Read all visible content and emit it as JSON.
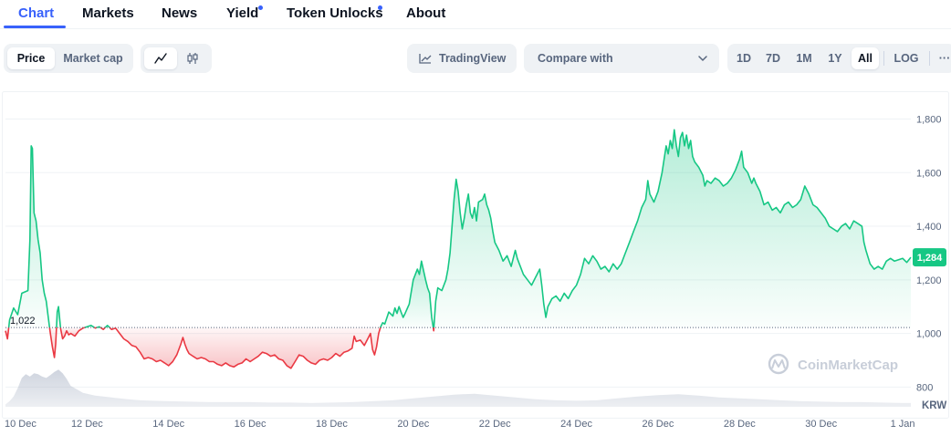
{
  "tabs": [
    {
      "label": "Chart",
      "active": true,
      "dot": false
    },
    {
      "label": "Markets",
      "active": false,
      "dot": false
    },
    {
      "label": "News",
      "active": false,
      "dot": false
    },
    {
      "label": "Yield",
      "active": false,
      "dot": true
    },
    {
      "label": "Token Unlocks",
      "active": false,
      "dot": true
    },
    {
      "label": "About",
      "active": false,
      "dot": false
    }
  ],
  "toolbar": {
    "price_label": "Price",
    "market_cap_label": "Market cap",
    "line_chart_icon": "line-chart-icon",
    "candlestick_icon": "candlestick-icon",
    "tradingview_label": "TradingView",
    "compare_label": "Compare with",
    "ranges": [
      "1D",
      "7D",
      "1M",
      "1Y",
      "All"
    ],
    "active_range": "All",
    "log_label": "LOG",
    "more_label": "···"
  },
  "colors": {
    "accent": "#3861fb",
    "up": "#16c784",
    "down": "#ea3943",
    "text": "#0d1421",
    "muted": "#58667e"
  },
  "chart_data": {
    "type": "area",
    "currency": "KRW",
    "baseline": 1022,
    "baseline_label": "1,022",
    "current_value": 1284,
    "current_label": "1,284",
    "y_ticks": [
      800,
      1000,
      1200,
      1400,
      1600,
      1800
    ],
    "y_tick_labels": [
      "800",
      "1,000",
      "1,200",
      "1,400",
      "1,600",
      "1,800"
    ],
    "ylim": [
      740,
      1880
    ],
    "x_tick_labels": [
      "10 Dec",
      "12 Dec",
      "14 Dec",
      "16 Dec",
      "18 Dec",
      "20 Dec",
      "22 Dec",
      "24 Dec",
      "26 Dec",
      "28 Dec",
      "30 Dec",
      "1 Jan"
    ],
    "watermark": "CoinMarketCap",
    "price": [
      [
        0.0,
        1010
      ],
      [
        0.05,
        980
      ],
      [
        0.1,
        1050
      ],
      [
        0.2,
        1095
      ],
      [
        0.3,
        1070
      ],
      [
        0.4,
        1150
      ],
      [
        0.55,
        1160
      ],
      [
        0.6,
        1350
      ],
      [
        0.63,
        1700
      ],
      [
        0.66,
        1690
      ],
      [
        0.7,
        1450
      ],
      [
        0.75,
        1420
      ],
      [
        0.8,
        1350
      ],
      [
        0.85,
        1300
      ],
      [
        0.9,
        1200
      ],
      [
        0.95,
        1150
      ],
      [
        1.0,
        1120
      ],
      [
        1.05,
        1060
      ],
      [
        1.1,
        1000
      ],
      [
        1.15,
        950
      ],
      [
        1.2,
        910
      ],
      [
        1.23,
        960
      ],
      [
        1.27,
        1080
      ],
      [
        1.3,
        1100
      ],
      [
        1.35,
        1020
      ],
      [
        1.4,
        980
      ],
      [
        1.45,
        990
      ],
      [
        1.5,
        1010
      ],
      [
        1.55,
        995
      ],
      [
        1.6,
        1000
      ],
      [
        1.7,
        990
      ],
      [
        1.8,
        1010
      ],
      [
        1.9,
        1020
      ],
      [
        2.0,
        1025
      ],
      [
        2.1,
        1030
      ],
      [
        2.2,
        1020
      ],
      [
        2.3,
        1025
      ],
      [
        2.4,
        1015
      ],
      [
        2.5,
        1030
      ],
      [
        2.6,
        1015
      ],
      [
        2.7,
        1020
      ],
      [
        2.8,
        1000
      ],
      [
        2.9,
        980
      ],
      [
        3.0,
        970
      ],
      [
        3.1,
        955
      ],
      [
        3.2,
        950
      ],
      [
        3.3,
        930
      ],
      [
        3.4,
        905
      ],
      [
        3.5,
        910
      ],
      [
        3.6,
        905
      ],
      [
        3.7,
        895
      ],
      [
        3.8,
        900
      ],
      [
        3.9,
        890
      ],
      [
        4.0,
        880
      ],
      [
        4.1,
        895
      ],
      [
        4.2,
        920
      ],
      [
        4.3,
        960
      ],
      [
        4.35,
        985
      ],
      [
        4.4,
        960
      ],
      [
        4.45,
        940
      ],
      [
        4.5,
        925
      ],
      [
        4.6,
        915
      ],
      [
        4.7,
        905
      ],
      [
        4.8,
        910
      ],
      [
        4.9,
        905
      ],
      [
        5.0,
        895
      ],
      [
        5.1,
        895
      ],
      [
        5.2,
        885
      ],
      [
        5.3,
        880
      ],
      [
        5.4,
        890
      ],
      [
        5.5,
        880
      ],
      [
        5.6,
        875
      ],
      [
        5.7,
        885
      ],
      [
        5.8,
        890
      ],
      [
        5.9,
        905
      ],
      [
        6.0,
        895
      ],
      [
        6.1,
        905
      ],
      [
        6.2,
        915
      ],
      [
        6.3,
        930
      ],
      [
        6.4,
        925
      ],
      [
        6.5,
        915
      ],
      [
        6.6,
        920
      ],
      [
        6.7,
        905
      ],
      [
        6.8,
        900
      ],
      [
        6.9,
        880
      ],
      [
        7.0,
        870
      ],
      [
        7.1,
        895
      ],
      [
        7.2,
        920
      ],
      [
        7.3,
        915
      ],
      [
        7.4,
        900
      ],
      [
        7.5,
        890
      ],
      [
        7.6,
        885
      ],
      [
        7.7,
        900
      ],
      [
        7.8,
        905
      ],
      [
        7.9,
        900
      ],
      [
        8.0,
        910
      ],
      [
        8.1,
        925
      ],
      [
        8.2,
        915
      ],
      [
        8.3,
        930
      ],
      [
        8.4,
        935
      ],
      [
        8.5,
        945
      ],
      [
        8.55,
        990
      ],
      [
        8.6,
        970
      ],
      [
        8.7,
        975
      ],
      [
        8.8,
        955
      ],
      [
        8.9,
        985
      ],
      [
        8.95,
        1000
      ],
      [
        9.0,
        940
      ],
      [
        9.05,
        920
      ],
      [
        9.1,
        950
      ],
      [
        9.15,
        1000
      ],
      [
        9.2,
        1025
      ],
      [
        9.25,
        1040
      ],
      [
        9.3,
        1035
      ],
      [
        9.4,
        1080
      ],
      [
        9.5,
        1065
      ],
      [
        9.55,
        1095
      ],
      [
        9.6,
        1075
      ],
      [
        9.65,
        1100
      ],
      [
        9.7,
        1080
      ],
      [
        9.75,
        1060
      ],
      [
        9.8,
        1075
      ],
      [
        9.9,
        1110
      ],
      [
        10.0,
        1200
      ],
      [
        10.1,
        1240
      ],
      [
        10.15,
        1220
      ],
      [
        10.2,
        1270
      ],
      [
        10.3,
        1200
      ],
      [
        10.35,
        1170
      ],
      [
        10.4,
        1150
      ],
      [
        10.45,
        1060
      ],
      [
        10.5,
        1010
      ],
      [
        10.55,
        1120
      ],
      [
        10.6,
        1170
      ],
      [
        10.7,
        1160
      ],
      [
        10.8,
        1200
      ],
      [
        10.85,
        1240
      ],
      [
        10.9,
        1300
      ],
      [
        10.95,
        1400
      ],
      [
        11.0,
        1500
      ],
      [
        11.05,
        1575
      ],
      [
        11.1,
        1530
      ],
      [
        11.15,
        1450
      ],
      [
        11.2,
        1390
      ],
      [
        11.25,
        1430
      ],
      [
        11.3,
        1480
      ],
      [
        11.35,
        1520
      ],
      [
        11.4,
        1450
      ],
      [
        11.45,
        1430
      ],
      [
        11.5,
        1470
      ],
      [
        11.55,
        1420
      ],
      [
        11.6,
        1490
      ],
      [
        11.7,
        1500
      ],
      [
        11.75,
        1520
      ],
      [
        11.8,
        1480
      ],
      [
        11.85,
        1460
      ],
      [
        11.9,
        1430
      ],
      [
        11.95,
        1380
      ],
      [
        12.0,
        1340
      ],
      [
        12.1,
        1310
      ],
      [
        12.2,
        1270
      ],
      [
        12.3,
        1290
      ],
      [
        12.4,
        1250
      ],
      [
        12.5,
        1310
      ],
      [
        12.55,
        1280
      ],
      [
        12.6,
        1260
      ],
      [
        12.7,
        1220
      ],
      [
        12.8,
        1200
      ],
      [
        12.9,
        1180
      ],
      [
        13.0,
        1210
      ],
      [
        13.1,
        1240
      ],
      [
        13.15,
        1180
      ],
      [
        13.2,
        1110
      ],
      [
        13.25,
        1060
      ],
      [
        13.3,
        1100
      ],
      [
        13.4,
        1130
      ],
      [
        13.5,
        1140
      ],
      [
        13.6,
        1120
      ],
      [
        13.7,
        1150
      ],
      [
        13.8,
        1130
      ],
      [
        13.9,
        1160
      ],
      [
        14.0,
        1180
      ],
      [
        14.1,
        1220
      ],
      [
        14.2,
        1280
      ],
      [
        14.3,
        1260
      ],
      [
        14.4,
        1290
      ],
      [
        14.5,
        1270
      ],
      [
        14.6,
        1240
      ],
      [
        14.7,
        1250
      ],
      [
        14.8,
        1230
      ],
      [
        14.9,
        1260
      ],
      [
        15.0,
        1240
      ],
      [
        15.1,
        1260
      ],
      [
        15.2,
        1300
      ],
      [
        15.3,
        1340
      ],
      [
        15.4,
        1380
      ],
      [
        15.5,
        1420
      ],
      [
        15.6,
        1470
      ],
      [
        15.7,
        1500
      ],
      [
        15.75,
        1570
      ],
      [
        15.8,
        1520
      ],
      [
        15.9,
        1490
      ],
      [
        16.0,
        1530
      ],
      [
        16.1,
        1600
      ],
      [
        16.2,
        1700
      ],
      [
        16.25,
        1670
      ],
      [
        16.3,
        1720
      ],
      [
        16.35,
        1690
      ],
      [
        16.4,
        1760
      ],
      [
        16.45,
        1700
      ],
      [
        16.5,
        1660
      ],
      [
        16.55,
        1730
      ],
      [
        16.6,
        1750
      ],
      [
        16.65,
        1700
      ],
      [
        16.7,
        1740
      ],
      [
        16.75,
        1690
      ],
      [
        16.8,
        1720
      ],
      [
        16.85,
        1660
      ],
      [
        16.9,
        1640
      ],
      [
        17.0,
        1620
      ],
      [
        17.1,
        1590
      ],
      [
        17.15,
        1550
      ],
      [
        17.2,
        1570
      ],
      [
        17.3,
        1560
      ],
      [
        17.4,
        1580
      ],
      [
        17.5,
        1570
      ],
      [
        17.6,
        1550
      ],
      [
        17.7,
        1560
      ],
      [
        17.8,
        1580
      ],
      [
        17.9,
        1610
      ],
      [
        18.0,
        1650
      ],
      [
        18.05,
        1680
      ],
      [
        18.1,
        1620
      ],
      [
        18.2,
        1600
      ],
      [
        18.3,
        1560
      ],
      [
        18.35,
        1580
      ],
      [
        18.4,
        1560
      ],
      [
        18.5,
        1530
      ],
      [
        18.6,
        1480
      ],
      [
        18.7,
        1490
      ],
      [
        18.8,
        1460
      ],
      [
        18.9,
        1470
      ],
      [
        19.0,
        1450
      ],
      [
        19.1,
        1480
      ],
      [
        19.2,
        1490
      ],
      [
        19.3,
        1470
      ],
      [
        19.4,
        1480
      ],
      [
        19.5,
        1500
      ],
      [
        19.6,
        1550
      ],
      [
        19.7,
        1520
      ],
      [
        19.8,
        1480
      ],
      [
        19.9,
        1470
      ],
      [
        20.0,
        1450
      ],
      [
        20.1,
        1430
      ],
      [
        20.2,
        1400
      ],
      [
        20.3,
        1390
      ],
      [
        20.4,
        1380
      ],
      [
        20.5,
        1400
      ],
      [
        20.6,
        1410
      ],
      [
        20.7,
        1390
      ],
      [
        20.8,
        1420
      ],
      [
        20.9,
        1410
      ],
      [
        21.0,
        1400
      ],
      [
        21.05,
        1340
      ],
      [
        21.1,
        1310
      ],
      [
        21.2,
        1260
      ],
      [
        21.3,
        1240
      ],
      [
        21.4,
        1250
      ],
      [
        21.5,
        1240
      ],
      [
        21.6,
        1270
      ],
      [
        21.7,
        1280
      ],
      [
        21.8,
        1270
      ],
      [
        21.9,
        1275
      ],
      [
        22.0,
        1280
      ],
      [
        22.1,
        1265
      ],
      [
        22.2,
        1284
      ]
    ],
    "volume": [
      [
        0.0,
        0.05
      ],
      [
        0.1,
        0.12
      ],
      [
        0.2,
        0.22
      ],
      [
        0.3,
        0.4
      ],
      [
        0.4,
        0.62
      ],
      [
        0.5,
        0.7
      ],
      [
        0.6,
        0.65
      ],
      [
        0.7,
        0.72
      ],
      [
        0.8,
        0.7
      ],
      [
        0.9,
        0.65
      ],
      [
        1.0,
        0.62
      ],
      [
        1.1,
        0.68
      ],
      [
        1.2,
        0.75
      ],
      [
        1.3,
        0.8
      ],
      [
        1.4,
        0.72
      ],
      [
        1.5,
        0.6
      ],
      [
        1.6,
        0.45
      ],
      [
        1.7,
        0.4
      ],
      [
        1.8,
        0.35
      ],
      [
        1.9,
        0.3
      ],
      [
        2.0,
        0.28
      ],
      [
        2.1,
        0.26
      ],
      [
        2.2,
        0.24
      ],
      [
        2.4,
        0.22
      ],
      [
        2.6,
        0.2
      ],
      [
        2.8,
        0.18
      ],
      [
        3.0,
        0.16
      ],
      [
        3.3,
        0.14
      ],
      [
        3.6,
        0.13
      ],
      [
        4.0,
        0.12
      ],
      [
        4.5,
        0.11
      ],
      [
        5.0,
        0.1
      ],
      [
        5.5,
        0.1
      ],
      [
        6.0,
        0.1
      ],
      [
        6.5,
        0.09
      ],
      [
        7.0,
        0.09
      ],
      [
        7.5,
        0.08
      ],
      [
        8.0,
        0.09
      ],
      [
        8.5,
        0.1
      ],
      [
        9.0,
        0.12
      ],
      [
        9.5,
        0.14
      ],
      [
        10.0,
        0.18
      ],
      [
        10.5,
        0.22
      ],
      [
        11.0,
        0.26
      ],
      [
        11.5,
        0.28
      ],
      [
        12.0,
        0.24
      ],
      [
        12.5,
        0.2
      ],
      [
        13.0,
        0.16
      ],
      [
        13.5,
        0.14
      ],
      [
        14.0,
        0.13
      ],
      [
        14.5,
        0.14
      ],
      [
        15.0,
        0.18
      ],
      [
        15.5,
        0.22
      ],
      [
        16.0,
        0.25
      ],
      [
        16.5,
        0.27
      ],
      [
        17.0,
        0.24
      ],
      [
        17.5,
        0.2
      ],
      [
        18.0,
        0.18
      ],
      [
        18.5,
        0.16
      ],
      [
        19.0,
        0.14
      ],
      [
        19.5,
        0.12
      ],
      [
        20.0,
        0.11
      ],
      [
        20.5,
        0.1
      ],
      [
        21.0,
        0.1
      ],
      [
        21.5,
        0.09
      ],
      [
        22.0,
        0.08
      ],
      [
        22.2,
        0.08
      ]
    ]
  }
}
